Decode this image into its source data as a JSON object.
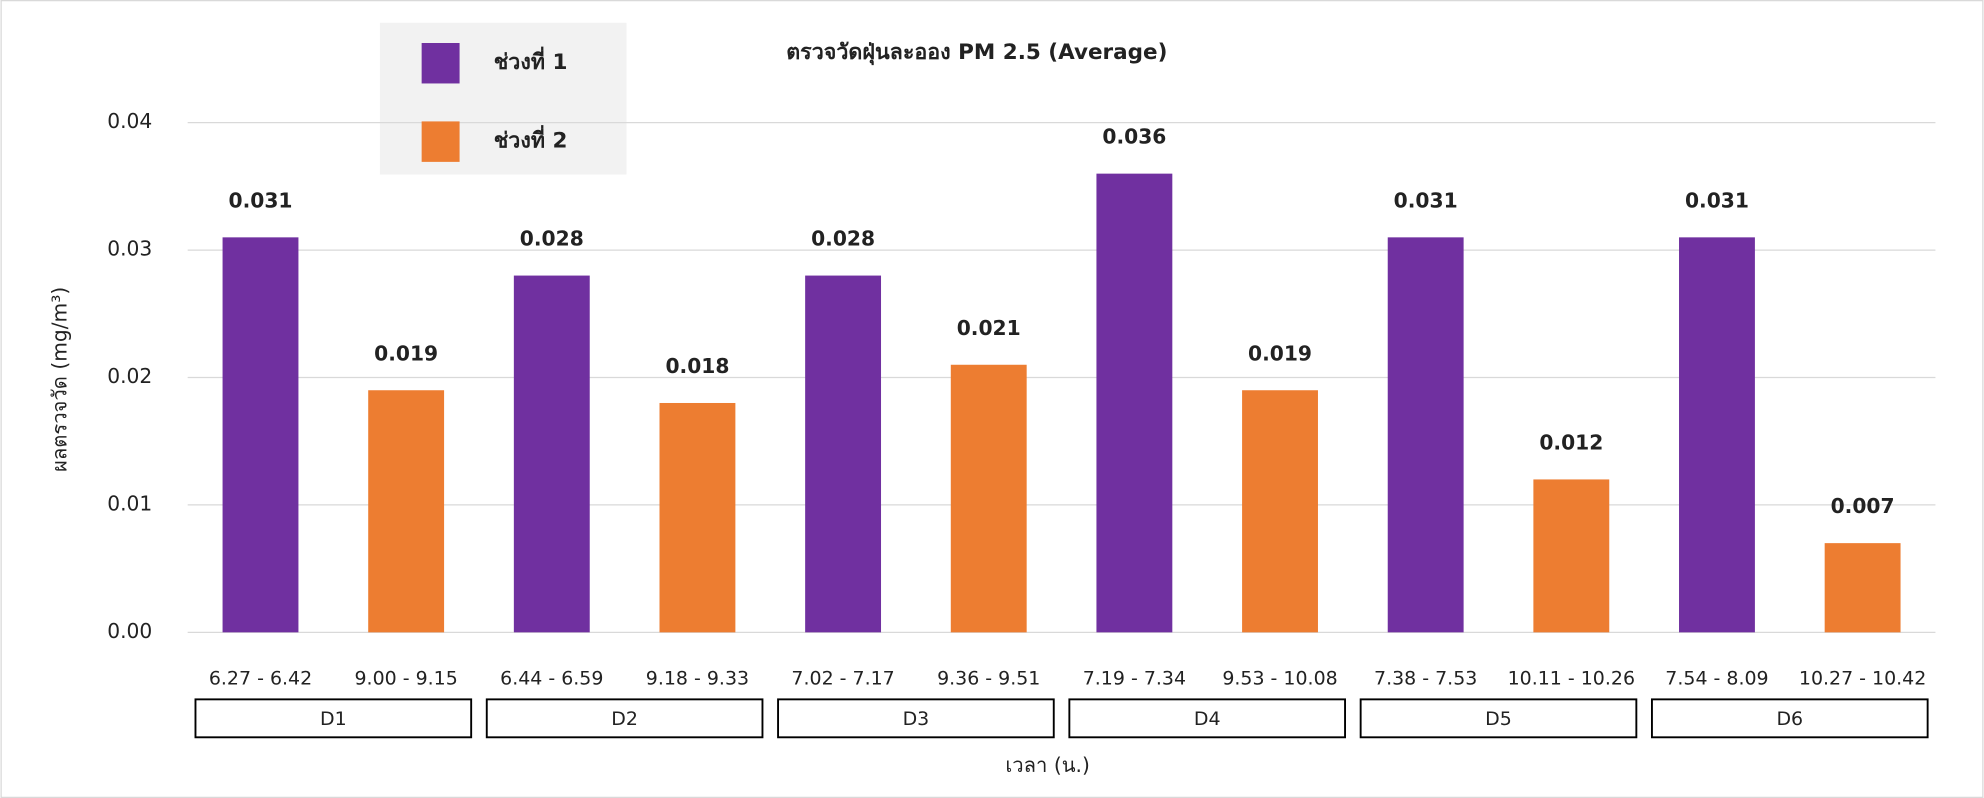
{
  "chart_data": {
    "type": "bar",
    "title": "ตรวจวัดฝุ่นละออง PM 2.5 (Average)",
    "y_label": "ผลตรวจวัด (mg/m³)",
    "x_label": "เวลา (น.)",
    "categories": [
      "6.27 - 6.42",
      "9.00 - 9.15",
      "6.44 - 6.59",
      "9.18 - 9.33",
      "7.02 - 7.17",
      "9.36 - 9.51",
      "7.19 - 7.34",
      "9.53 - 10.08",
      "7.38 - 7.53",
      "10.11 - 10.26",
      "7.54 - 8.09",
      "10.27 - 10.42"
    ],
    "groups": [
      "D1",
      "D2",
      "D3",
      "D4",
      "D5",
      "D6"
    ],
    "series": [
      {
        "name": "ช่วงที่ 1",
        "color": "#7030a0",
        "values": [
          0.031,
          null,
          0.028,
          null,
          0.028,
          null,
          0.036,
          null,
          0.031,
          null,
          0.031,
          null
        ]
      },
      {
        "name": "ช่วงที่ 2",
        "color": "#ed7d31",
        "values": [
          null,
          0.019,
          null,
          0.018,
          null,
          0.021,
          null,
          0.019,
          null,
          0.012,
          null,
          0.007
        ]
      }
    ],
    "ylim": [
      0,
      0.04
    ],
    "yticks": [
      {
        "value": 0,
        "label": "0.00"
      },
      0.01,
      0.02,
      0.03,
      0.04
    ],
    "grid": true,
    "legend": "top-left"
  }
}
